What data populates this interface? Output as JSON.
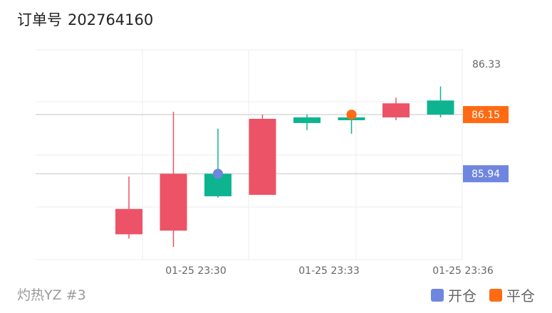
{
  "header": {
    "title_label": "订单号",
    "order_number": "202764160"
  },
  "footer": {
    "strategy_label": "灼热YZ #3"
  },
  "legend": {
    "open": {
      "label": "开仓",
      "color": "#6f86e0"
    },
    "close": {
      "label": "平仓",
      "color": "#ff6a13"
    }
  },
  "colors": {
    "up": "#0db48f",
    "down": "#ec5366",
    "grid": "#eeeeee",
    "refline": "#d8d8d8"
  },
  "chart_data": {
    "type": "candlestick",
    "ylim": [
      85.635,
      86.38
    ],
    "y_tick": 86.33,
    "x_ticks": [
      "01-25 23:30",
      "01-25 23:33",
      "01-25 23:36"
    ],
    "candles": [
      {
        "open": 85.815,
        "high": 85.93,
        "low": 85.71,
        "close": 85.725
      },
      {
        "open": 85.94,
        "high": 86.16,
        "low": 85.68,
        "close": 85.738
      },
      {
        "open": 85.86,
        "high": 86.1,
        "low": 85.855,
        "close": 85.94
      },
      {
        "open": 86.135,
        "high": 86.15,
        "low": 85.865,
        "close": 85.865
      },
      {
        "open": 86.12,
        "high": 86.15,
        "low": 86.095,
        "close": 86.14
      },
      {
        "open": 86.13,
        "high": 86.15,
        "low": 86.082,
        "close": 86.14
      },
      {
        "open": 86.19,
        "high": 86.21,
        "low": 86.13,
        "close": 86.14
      },
      {
        "open": 86.15,
        "high": 86.25,
        "low": 86.14,
        "close": 86.2
      }
    ],
    "markers": {
      "open": {
        "candle": 2,
        "price": 85.94,
        "label": "85.94"
      },
      "close": {
        "candle": 5,
        "price": 86.15,
        "label": "86.15"
      }
    }
  }
}
